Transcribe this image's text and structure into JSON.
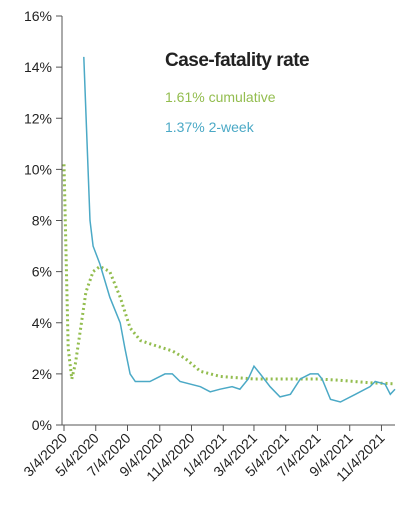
{
  "chart_data": {
    "type": "line",
    "title": "Case-fatality rate",
    "xlim": [
      "3/4/2020",
      "11/30/2021"
    ],
    "xticks": [
      "3/4/2020",
      "5/4/2020",
      "7/4/2020",
      "9/4/2020",
      "11/4/2020",
      "1/4/2021",
      "3/4/2021",
      "5/4/2021",
      "7/4/2021",
      "9/4/2021",
      "11/4/2021"
    ],
    "ylim": [
      0,
      16
    ],
    "yticks": [
      {
        "value": 0,
        "label": "0%"
      },
      {
        "value": 2,
        "label": "2%"
      },
      {
        "value": 4,
        "label": "4%"
      },
      {
        "value": 6,
        "label": "6%"
      },
      {
        "value": 8,
        "label": "8%"
      },
      {
        "value": 10,
        "label": "10%"
      },
      {
        "value": 12,
        "label": "12%"
      },
      {
        "value": 14,
        "label": "14%"
      },
      {
        "value": 16,
        "label": "16%"
      }
    ],
    "grid": false,
    "series": [
      {
        "name": "1.61% cumulative",
        "color": "#93bd4f",
        "style": "dotted",
        "x": [
          "3/4/2020",
          "3/12/2020",
          "3/19/2020",
          "3/26/2020",
          "4/5/2020",
          "4/15/2020",
          "4/29/2020",
          "5/12/2020",
          "5/31/2020",
          "6/20/2020",
          "7/9/2020",
          "7/29/2020",
          "8/28/2020",
          "9/28/2020",
          "10/23/2020",
          "11/21/2020",
          "12/29/2020",
          "3/4/2021",
          "7/5/2021",
          "8/17/2021",
          "10/13/2021",
          "11/30/2021"
        ],
        "values": [
          10.2,
          3,
          1.8,
          2.4,
          3.8,
          5.2,
          6.0,
          6.2,
          6.0,
          5.0,
          3.8,
          3.3,
          3.1,
          2.9,
          2.6,
          2.1,
          1.9,
          1.8,
          1.8,
          1.75,
          1.65,
          1.61
        ]
      },
      {
        "name": "1.37% 2-week",
        "color": "#4ba9c6",
        "style": "solid",
        "x": [
          "4/11/2020",
          "4/23/2020",
          "4/29/2020",
          "5/12/2020",
          "5/31/2020",
          "6/20/2020",
          "6/29/2020",
          "7/9/2020",
          "7/19/2020",
          "8/16/2020",
          "9/14/2020",
          "9/28/2020",
          "10/13/2020",
          "11/21/2020",
          "12/10/2020",
          "12/29/2020",
          "1/21/2021",
          "2/5/2021",
          "2/21/2021",
          "3/4/2021",
          "3/16/2021",
          "4/4/2021",
          "4/23/2021",
          "5/13/2021",
          "6/1/2021",
          "6/20/2021",
          "7/5/2021",
          "7/13/2021",
          "7/29/2021",
          "8/17/2021",
          "9/15/2021",
          "10/13/2021",
          "10/23/2021",
          "11/11/2021",
          "11/21/2021",
          "11/30/2021"
        ],
        "values": [
          14.4,
          8,
          7,
          6.3,
          5,
          4,
          3,
          2,
          1.7,
          1.7,
          2.0,
          2.0,
          1.7,
          1.5,
          1.3,
          1.4,
          1.5,
          1.4,
          1.8,
          2.3,
          2.0,
          1.5,
          1.1,
          1.2,
          1.8,
          2.0,
          2.0,
          1.8,
          1.0,
          0.9,
          1.2,
          1.5,
          1.7,
          1.6,
          1.2,
          1.4
        ]
      }
    ]
  }
}
